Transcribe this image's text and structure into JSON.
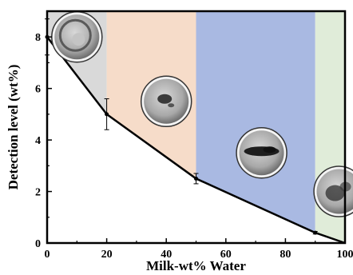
{
  "chart_data": {
    "type": "line",
    "xlabel": "Milk-wt% Water",
    "ylabel": "Detection level (wt%)",
    "xlim": [
      0,
      100
    ],
    "ylim": [
      0,
      9
    ],
    "xticks": [
      0,
      20,
      40,
      60,
      80,
      100
    ],
    "yticks": [
      0,
      2,
      4,
      6,
      8
    ],
    "x_tick_labels": [
      "0",
      "20",
      "40",
      "60",
      "80",
      "100"
    ],
    "y_tick_labels": [
      "0",
      "2",
      "4",
      "6",
      "8"
    ],
    "grid": false,
    "legend": "none",
    "regions": [
      {
        "from": 0,
        "to": 20,
        "color": "#d9d9d9"
      },
      {
        "from": 20,
        "to": 50,
        "color": "#f6dcc9"
      },
      {
        "from": 50,
        "to": 90,
        "color": "#a9b9e2"
      },
      {
        "from": 90,
        "to": 100,
        "color": "#e0ecd9"
      }
    ],
    "series": [
      {
        "line_color": "#000000",
        "points": [
          {
            "x": 0,
            "y": 8.0,
            "err": 0.7
          },
          {
            "x": 20,
            "y": 5.0,
            "err": 0.6
          },
          {
            "x": 50,
            "y": 2.5,
            "err": 0.2
          },
          {
            "x": 90,
            "y": 0.4,
            "err": 0.05
          },
          {
            "x": 100,
            "y": 0.0,
            "err": 0
          }
        ]
      }
    ],
    "droplet_images": [
      {
        "x": 10,
        "y": 8.0,
        "stain": "ring"
      },
      {
        "x": 40,
        "y": 5.5,
        "stain": "center-spot"
      },
      {
        "x": 72,
        "y": 3.5,
        "stain": "band"
      },
      {
        "x": 98,
        "y": 2.0,
        "stain": "diffuse"
      }
    ]
  }
}
